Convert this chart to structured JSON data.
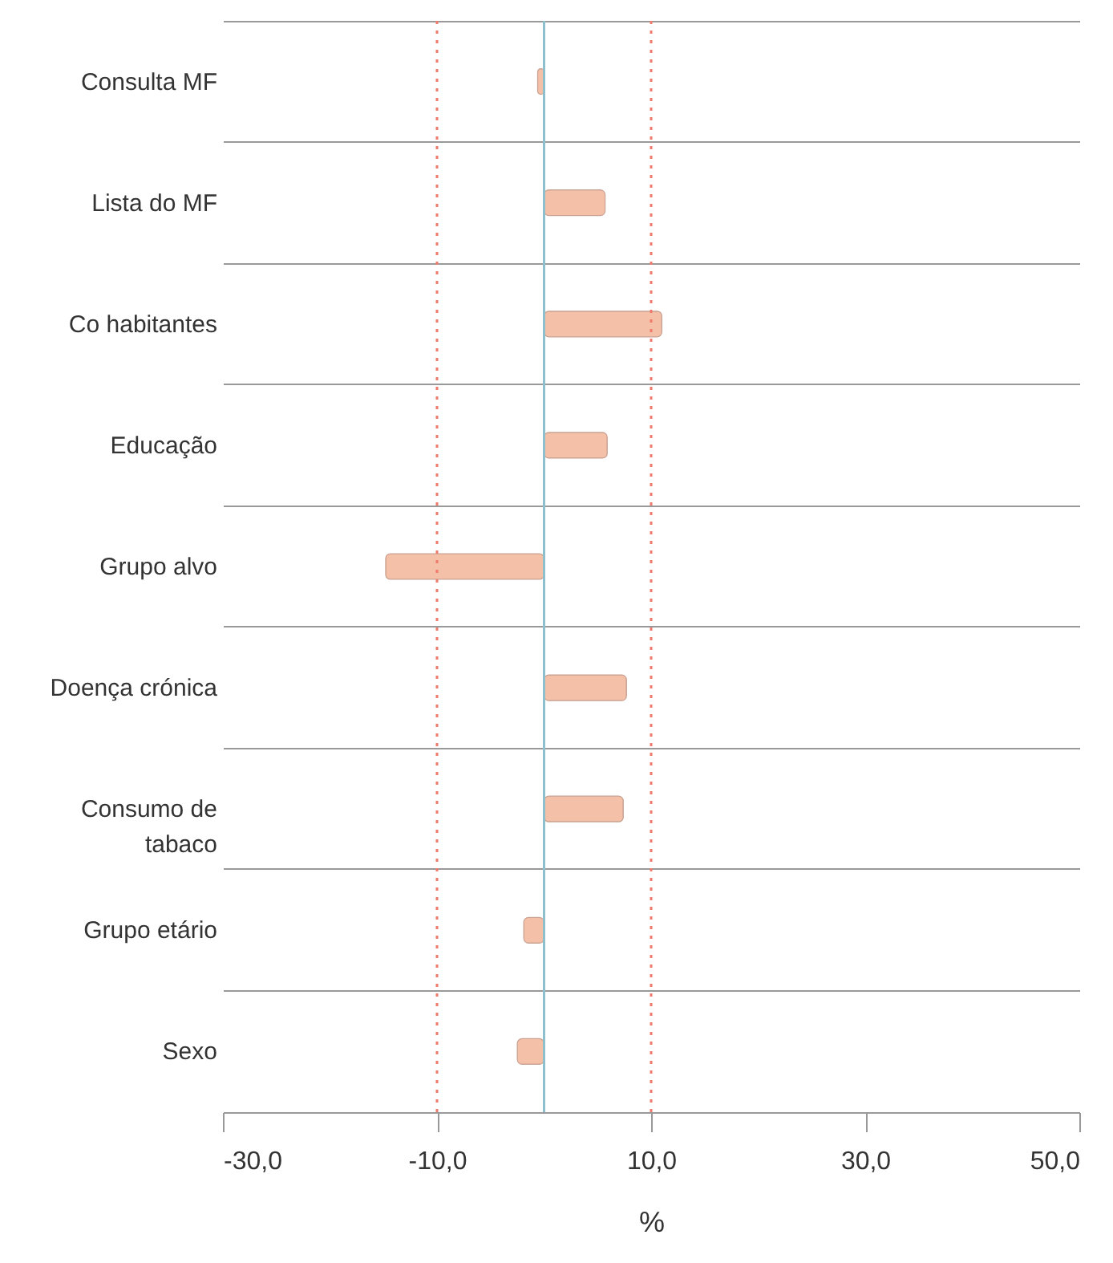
{
  "chart_data": {
    "type": "bar",
    "orientation": "horizontal",
    "xlabel": "%",
    "categories": [
      "Consulta MF",
      "Lista do MF",
      "Co habitantes",
      "Educação",
      "Grupo alvo",
      "Doença crónica",
      "Consumo de tabaco",
      "Grupo etário",
      "Sexo"
    ],
    "values": [
      -0.6,
      5.7,
      11.0,
      5.9,
      -14.8,
      7.7,
      7.4,
      -1.9,
      -2.5
    ],
    "color": "#f5c0a8",
    "xlim": [
      -30,
      50
    ],
    "xticks": [
      {
        "value": -30,
        "label": "-30,0"
      },
      {
        "value": -10,
        "label": "-10,0"
      },
      {
        "value": 10,
        "label": "10,0"
      },
      {
        "value": 30,
        "label": "30,0"
      },
      {
        "value": 50,
        "label": "50,0"
      }
    ],
    "ref_lines": [
      {
        "axis": "x",
        "value": 0,
        "color": "#8dbfcc",
        "line_style": "solid"
      },
      {
        "axis": "x",
        "value": -10,
        "color": "#ee7b6b",
        "line_style": "dotted"
      },
      {
        "axis": "x",
        "value": 10,
        "color": "#ee7b6b",
        "line_style": "dotted"
      }
    ],
    "grid": "y"
  }
}
